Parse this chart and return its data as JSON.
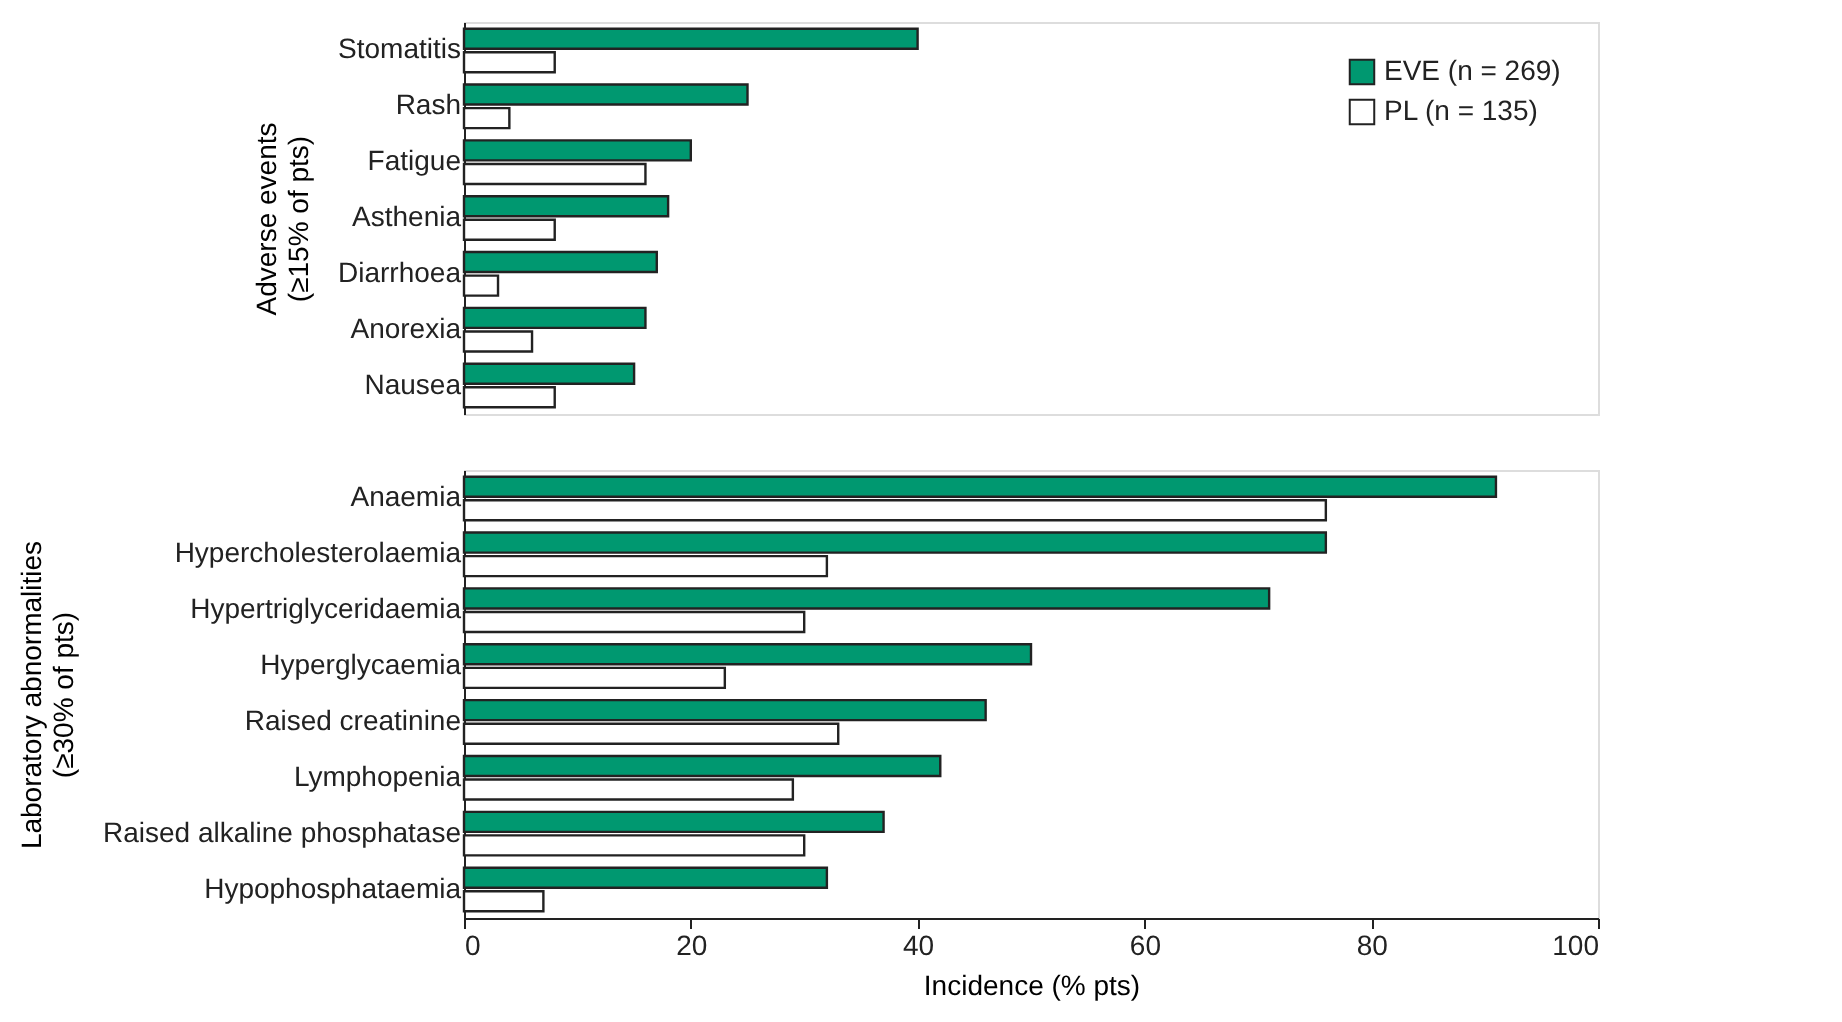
{
  "chart_data": [
    {
      "type": "bar",
      "orientation": "horizontal",
      "ylabel": "Adverse events (≥15% of pts)",
      "categories": [
        "Stomatitis",
        "Rash",
        "Fatigue",
        "Asthenia",
        "Diarrhoea",
        "Anorexia",
        "Nausea"
      ],
      "series": [
        {
          "name": "EVE (n = 269)",
          "color": "#009870",
          "values": [
            40,
            25,
            20,
            18,
            17,
            16,
            15
          ]
        },
        {
          "name": "PL (n = 135)",
          "color": "#ffffff",
          "values": [
            8,
            4,
            16,
            8,
            3,
            6,
            8
          ]
        }
      ],
      "xlim": [
        0,
        100
      ],
      "xticks": [
        0,
        20,
        40,
        60,
        80,
        100
      ],
      "tick_labels": "y",
      "legend": "top right",
      "grid": false
    },
    {
      "type": "bar",
      "orientation": "horizontal",
      "ylabel": "Laboratory abnormalities (≥30% of pts)",
      "xlabel": "Incidence (% pts)",
      "categories": [
        "Anaemia",
        "Hypercholesterolaemia",
        "Hypertriglyceridaemia",
        "Hyperglycaemia",
        "Raised creatinine",
        "Lymphopenia",
        "Raised alkaline phosphatase",
        "Hypophosphataemia"
      ],
      "series": [
        {
          "color": "#009870",
          "values": [
            91,
            76,
            71,
            50,
            46,
            42,
            37,
            32
          ]
        },
        {
          "color": "#ffffff",
          "values": [
            76,
            32,
            30,
            23,
            33,
            29,
            30,
            7
          ]
        }
      ],
      "xlim": [
        0,
        100
      ],
      "xticks": [
        0,
        20,
        40,
        60,
        80,
        100
      ],
      "legend": false,
      "grid": false
    }
  ]
}
